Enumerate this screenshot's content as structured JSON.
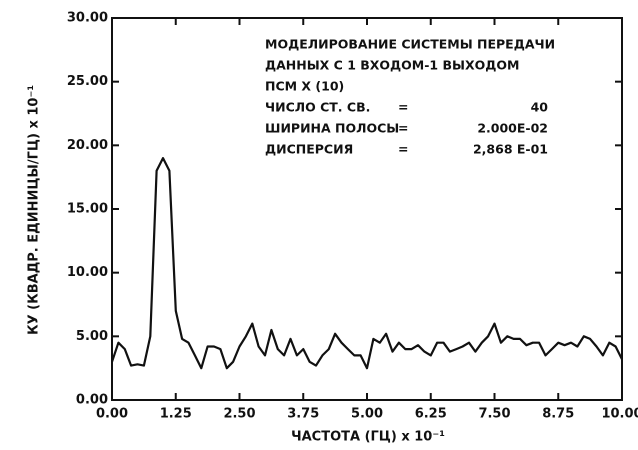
{
  "chart_data": {
    "type": "line",
    "xlabel": "ЧАСТОТА (ГЦ) x 10⁻¹",
    "ylabel": "КУ (КВАДР. ЕДИНИЦЫ/ГЦ) x 10⁻¹",
    "annotations": [
      "МОДЕЛИРОВАНИЕ СИСТЕМЫ ПЕРЕДАЧИ",
      "ДАННЫХ С 1 ВХОДОМ-1 ВЫХОДОМ",
      "ПСМ X (10)"
    ],
    "params": [
      [
        "ЧИСЛО СТ. СВ.",
        "=",
        "40"
      ],
      [
        "ШИРИНА ПОЛОСЫ",
        "=",
        "2.000E-02"
      ],
      [
        "ДИСПЕРСИЯ",
        "=",
        "2,868 E-01"
      ]
    ],
    "color": "#111111",
    "x": [
      0,
      0.125,
      0.25,
      0.375,
      0.5,
      0.625,
      0.75,
      0.875,
      1,
      1.125,
      1.25,
      1.375,
      1.5,
      1.625,
      1.75,
      1.875,
      2,
      2.125,
      2.25,
      2.375,
      2.5,
      2.625,
      2.75,
      2.875,
      3,
      3.125,
      3.25,
      3.375,
      3.5,
      3.625,
      3.75,
      3.875,
      4,
      4.125,
      4.25,
      4.375,
      4.5,
      4.625,
      4.75,
      4.875,
      5,
      5.125,
      5.25,
      5.375,
      5.5,
      5.625,
      5.75,
      5.875,
      6,
      6.125,
      6.25,
      6.375,
      6.5,
      6.625,
      6.75,
      6.875,
      7,
      7.125,
      7.25,
      7.375,
      7.5,
      7.625,
      7.75,
      7.875,
      8,
      8.125,
      8.25,
      8.375,
      8.5,
      8.625,
      8.75,
      8.875,
      9,
      9.125,
      9.25,
      9.375,
      9.5,
      9.625,
      9.75,
      9.875,
      10
    ],
    "values": [
      3.0,
      4.5,
      4.0,
      2.7,
      2.8,
      2.7,
      5.0,
      18.0,
      19.0,
      18.0,
      7.0,
      4.8,
      4.5,
      3.5,
      2.5,
      4.2,
      4.2,
      4.0,
      2.5,
      3.0,
      4.2,
      5.0,
      6.0,
      4.2,
      3.5,
      5.5,
      4.0,
      3.5,
      4.8,
      3.5,
      4.0,
      3.0,
      2.7,
      3.5,
      4.0,
      5.2,
      4.5,
      4.0,
      3.5,
      3.5,
      2.5,
      4.8,
      4.5,
      5.2,
      3.8,
      4.5,
      4.0,
      4.0,
      4.3,
      3.8,
      3.5,
      4.5,
      4.5,
      3.8,
      4.0,
      4.2,
      4.5,
      3.8,
      4.5,
      5.0,
      6.0,
      4.5,
      5.0,
      4.8,
      4.8,
      4.3,
      4.5,
      4.5,
      3.5,
      4.0,
      4.5,
      4.3,
      4.5,
      4.2,
      5.0,
      4.8,
      4.2,
      3.5,
      4.5,
      4.2,
      3.2
    ],
    "xlim": [
      0,
      10
    ],
    "ylim": [
      0,
      30
    ],
    "xticks": [
      {
        "value": 0,
        "label": "0.00"
      },
      {
        "value": 1.25,
        "label": "1.25"
      },
      {
        "value": 2.5,
        "label": "2.50"
      },
      {
        "value": 3.75,
        "label": "3.75"
      },
      {
        "value": 5,
        "label": "5.00"
      },
      {
        "value": 6.25,
        "label": "6.25"
      },
      {
        "value": 7.5,
        "label": "7.50"
      },
      {
        "value": 8.75,
        "label": "8.75"
      },
      {
        "value": 10,
        "label": "10.00"
      }
    ],
    "yticks": [
      {
        "value": 0,
        "label": "0.00"
      },
      {
        "value": 5,
        "label": "5.00"
      },
      {
        "value": 10,
        "label": "10.00"
      },
      {
        "value": 15,
        "label": "15.00"
      },
      {
        "value": 20,
        "label": "20.00"
      },
      {
        "value": 25,
        "label": "25.00"
      },
      {
        "value": 30,
        "label": "30.00"
      }
    ]
  }
}
